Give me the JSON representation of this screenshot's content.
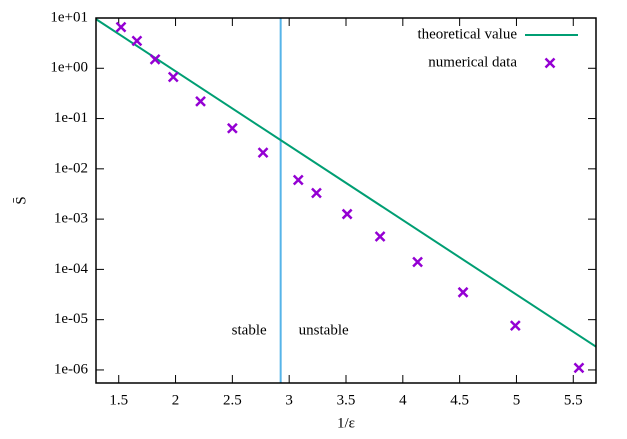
{
  "chart_data": {
    "type": "scatter",
    "xlabel": "1/ε",
    "ylabel": "S̄",
    "xlim": [
      1.3,
      5.7
    ],
    "ylim": [
      5.5e-07,
      10
    ],
    "log_y": true,
    "legend": "top-right",
    "xticks": [
      1.5,
      2,
      2.5,
      3,
      3.5,
      4,
      4.5,
      5,
      5.5
    ],
    "yticks": [
      {
        "value": 10,
        "label": "1e+01"
      },
      {
        "value": 1,
        "label": "1e+00"
      },
      {
        "value": 0.1,
        "label": "1e-01"
      },
      {
        "value": 0.01,
        "label": "1e-02"
      },
      {
        "value": 0.001,
        "label": "1e-03"
      },
      {
        "value": 0.0001,
        "label": "1e-04"
      },
      {
        "value": 1e-05,
        "label": "1e-05"
      },
      {
        "value": 1e-06,
        "label": "1e-06"
      }
    ],
    "series": [
      {
        "name": "theoretical value",
        "type": "line",
        "color": "#009e73",
        "x": [
          1.3,
          5.7
        ],
        "values": [
          9.5,
          2.9e-06
        ]
      },
      {
        "name": "numerical data",
        "type": "scatter",
        "color": "#9400d3",
        "x": [
          1.52,
          1.66,
          1.82,
          1.98,
          2.22,
          2.5,
          2.77,
          3.08,
          3.24,
          3.51,
          3.8,
          4.13,
          4.53,
          4.99,
          5.55
        ],
        "values": [
          6.6,
          3.5,
          1.5,
          0.67,
          0.22,
          0.064,
          0.021,
          0.006,
          0.0033,
          0.00126,
          0.00045,
          0.00014,
          3.5e-05,
          7.6e-06,
          1.1e-06
        ]
      }
    ],
    "vline": {
      "x": 2.925,
      "color": "#56b4e9"
    },
    "annotations": [
      "stable",
      "unstable"
    ]
  }
}
